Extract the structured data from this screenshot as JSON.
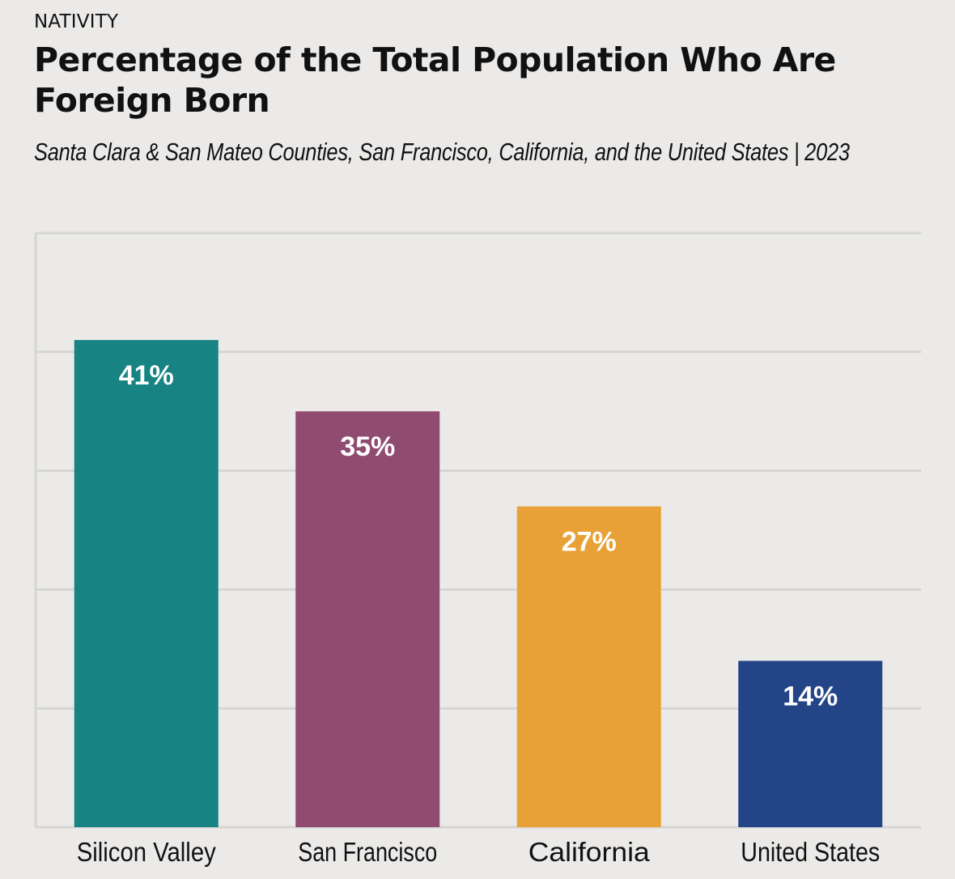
{
  "header": {
    "kicker": "NATIVITY",
    "title": "Percentage of the Total Population Who Are Foreign Born",
    "subtitle": "Santa Clara & San Mateo Counties, San Francisco, California, and the United States | 2023"
  },
  "chart_data": {
    "type": "bar",
    "title": "Percentage of the Total Population Who Are Foreign Born",
    "subtitle": "Santa Clara & San Mateo Counties, San Francisco, California, and the United States | 2023",
    "categories": [
      "Silicon Valley",
      "San Francisco",
      "California",
      "United States"
    ],
    "values": [
      41,
      35,
      27,
      14
    ],
    "value_labels": [
      "41%",
      "35%",
      "27%",
      "14%"
    ],
    "colors": [
      "#178383",
      "#8f4b70",
      "#e8a136",
      "#244488"
    ],
    "xlabel": "",
    "ylabel": "",
    "ylim": [
      0,
      50
    ],
    "grid": true,
    "gridline_values": [
      0,
      10,
      20,
      30,
      40,
      50
    ],
    "legend": "none"
  }
}
